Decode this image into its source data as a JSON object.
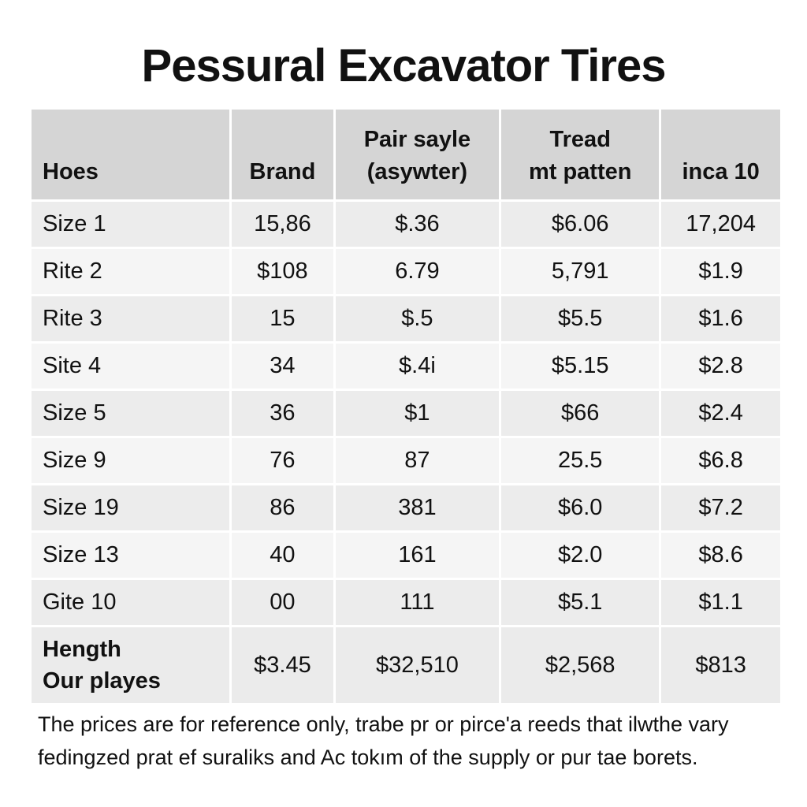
{
  "title": "Pessural Excavator Tires",
  "headers": [
    "Hoes",
    "Brand",
    "Pair sayle (asywter)",
    "Tread mt patten",
    "inca 10"
  ],
  "rows": [
    [
      "Size 1",
      "15,86",
      "$.36",
      "$6.06",
      "17,204"
    ],
    [
      "Rite 2",
      "$108",
      "6.79",
      "5,791",
      "$1.9"
    ],
    [
      "Rite 3",
      "15",
      "$.5",
      "$5.5",
      "$1.6"
    ],
    [
      "Site 4",
      "34",
      "$.4i",
      "$5.15",
      "$2.8"
    ],
    [
      "Size 5",
      "36",
      "$1",
      "$66",
      "$2.4"
    ],
    [
      "Size 9",
      "76",
      "87",
      "25.5",
      "$6.8"
    ],
    [
      "Size 19",
      "86",
      "381",
      "$6.0",
      "$7.2"
    ],
    [
      "Size 13",
      "40",
      "161",
      "$2.0",
      "$8.6"
    ],
    [
      "Gite 10",
      "00",
      "111",
      "$5.1",
      "$1.1"
    ]
  ],
  "total": [
    "Hength Our playes",
    "$3.45",
    "$32,510",
    "$2,568",
    "$813"
  ],
  "note": "The prices are for reference only, trabe pr or pirce'a reeds that ilwthe vary fedingzed prat ef suraliks and Ac tokım of the supply or pur tae borets."
}
